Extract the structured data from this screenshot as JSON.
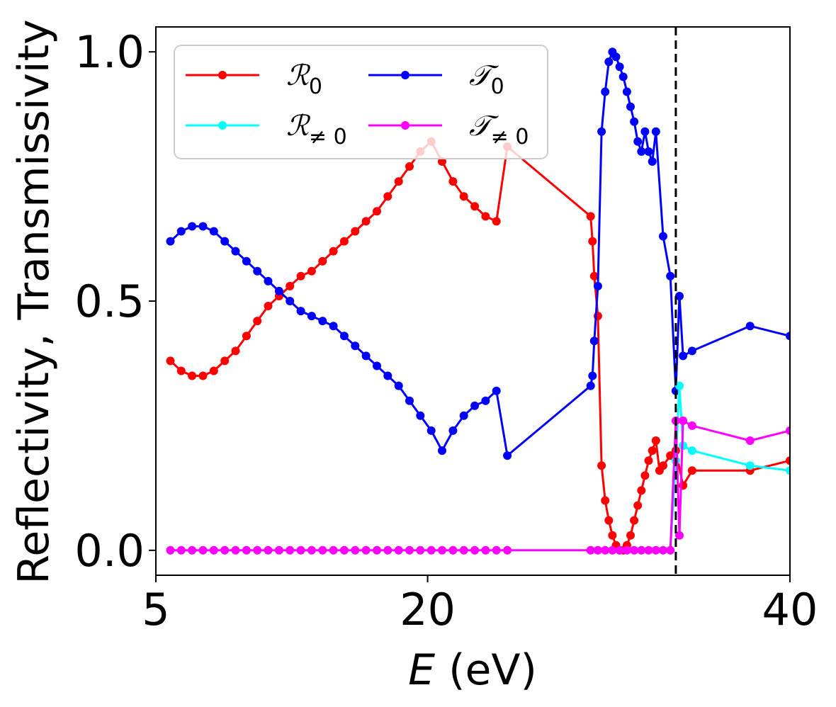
{
  "chart_data": {
    "type": "line",
    "xlabel_var": "E",
    "xlabel_unit": " (eV)",
    "ylabel": "Reflectivity, Transmissivity",
    "xlim": [
      5,
      40
    ],
    "ylim": [
      -0.05,
      1.05
    ],
    "x_ticks": [
      5,
      20,
      40
    ],
    "x_tick_labels": [
      "5",
      "20",
      "40"
    ],
    "y_ticks": [
      0.0,
      0.5,
      1.0
    ],
    "y_tick_labels": [
      "0.0",
      "0.5",
      "1.0"
    ],
    "vline": {
      "x": 33.7,
      "style": "dashed",
      "color": "#000000"
    },
    "legend_position": "upper-left",
    "series": [
      {
        "name": "R_0",
        "label_main": "ℛ",
        "label_sub": "0",
        "color": "#ff0000",
        "x": [
          5.8,
          6.4,
          7.0,
          7.6,
          8.2,
          8.8,
          9.4,
          10.0,
          10.6,
          11.2,
          11.8,
          12.4,
          13.0,
          13.6,
          14.2,
          14.8,
          15.4,
          16.0,
          16.6,
          17.2,
          17.8,
          18.4,
          19.0,
          19.6,
          20.2,
          20.8,
          21.4,
          22.0,
          22.6,
          23.2,
          23.8,
          24.4,
          29.0,
          29.1,
          29.2,
          29.4,
          29.6,
          29.8,
          30.0,
          30.2,
          30.4,
          30.6,
          30.8,
          31.0,
          31.2,
          31.4,
          31.6,
          31.8,
          32.0,
          32.2,
          32.4,
          32.6,
          32.8,
          33.0,
          33.4,
          33.7,
          34.1,
          34.6,
          37.8,
          40.0
        ],
        "y": [
          0.38,
          0.36,
          0.35,
          0.35,
          0.36,
          0.38,
          0.4,
          0.43,
          0.46,
          0.49,
          0.51,
          0.53,
          0.55,
          0.56,
          0.58,
          0.6,
          0.62,
          0.64,
          0.66,
          0.68,
          0.71,
          0.74,
          0.77,
          0.8,
          0.82,
          0.78,
          0.74,
          0.71,
          0.69,
          0.67,
          0.66,
          0.81,
          0.67,
          0.62,
          0.55,
          0.47,
          0.17,
          0.1,
          0.06,
          0.03,
          0.01,
          0.0,
          0.0,
          0.01,
          0.03,
          0.06,
          0.09,
          0.12,
          0.15,
          0.18,
          0.2,
          0.22,
          0.16,
          0.17,
          0.19,
          0.2,
          0.13,
          0.16,
          0.16,
          0.18
        ]
      },
      {
        "name": "T_0",
        "label_main": "𝒯",
        "label_sub": "0",
        "color": "#0000ff",
        "x": [
          5.8,
          6.4,
          7.0,
          7.6,
          8.2,
          8.8,
          9.4,
          10.0,
          10.6,
          11.2,
          11.8,
          12.4,
          13.0,
          13.6,
          14.2,
          14.8,
          15.4,
          16.0,
          16.6,
          17.2,
          17.8,
          18.4,
          19.0,
          19.6,
          20.2,
          20.8,
          21.4,
          22.0,
          22.6,
          23.2,
          23.8,
          24.4,
          29.0,
          29.1,
          29.2,
          29.4,
          29.6,
          29.8,
          30.0,
          30.2,
          30.4,
          30.6,
          30.8,
          31.0,
          31.2,
          31.4,
          31.6,
          31.8,
          32.0,
          32.2,
          32.4,
          32.6,
          33.0,
          33.4,
          33.7,
          33.9,
          34.1,
          34.6,
          37.8,
          40.0
        ],
        "y": [
          0.62,
          0.64,
          0.65,
          0.65,
          0.64,
          0.62,
          0.6,
          0.58,
          0.56,
          0.54,
          0.52,
          0.5,
          0.48,
          0.47,
          0.46,
          0.45,
          0.43,
          0.41,
          0.39,
          0.37,
          0.35,
          0.33,
          0.3,
          0.27,
          0.24,
          0.2,
          0.24,
          0.27,
          0.29,
          0.3,
          0.32,
          0.19,
          0.33,
          0.35,
          0.42,
          0.53,
          0.84,
          0.92,
          0.98,
          1.0,
          0.99,
          0.97,
          0.95,
          0.92,
          0.89,
          0.86,
          0.82,
          0.8,
          0.84,
          0.8,
          0.78,
          0.84,
          0.63,
          0.55,
          0.32,
          0.51,
          0.39,
          0.4,
          0.45,
          0.43
        ]
      },
      {
        "name": "R_neq0",
        "label_main": "ℛ",
        "label_sub": "≠ 0",
        "color": "#00ffff",
        "x": [
          33.4,
          33.7,
          33.9,
          34.1,
          34.6,
          37.8,
          40.0
        ],
        "y": [
          0.0,
          0.18,
          0.33,
          0.21,
          0.2,
          0.17,
          0.16
        ]
      },
      {
        "name": "T_neq0",
        "label_main": "𝒯",
        "label_sub": "≠ 0",
        "color": "#ff00ff",
        "x": [
          5.8,
          6.4,
          7.0,
          7.6,
          8.2,
          8.8,
          9.4,
          10.0,
          10.6,
          11.2,
          11.8,
          12.4,
          13.0,
          13.6,
          14.2,
          14.8,
          15.4,
          16.0,
          16.6,
          17.2,
          17.8,
          18.4,
          19.0,
          19.6,
          20.2,
          20.8,
          21.4,
          22.0,
          22.6,
          23.2,
          23.8,
          24.4,
          29.0,
          29.4,
          29.8,
          30.2,
          30.6,
          31.0,
          31.4,
          31.8,
          32.2,
          32.6,
          33.0,
          33.4,
          33.7,
          33.9,
          34.1,
          34.6,
          37.8,
          40.0
        ],
        "y": [
          0,
          0,
          0,
          0,
          0,
          0,
          0,
          0,
          0,
          0,
          0,
          0,
          0,
          0,
          0,
          0,
          0,
          0,
          0,
          0,
          0,
          0,
          0,
          0,
          0,
          0,
          0,
          0,
          0,
          0,
          0,
          0,
          0,
          0,
          0,
          0,
          0,
          0,
          0,
          0,
          0,
          0,
          0,
          0,
          0.26,
          0.03,
          0.26,
          0.25,
          0.22,
          0.24
        ]
      }
    ]
  }
}
